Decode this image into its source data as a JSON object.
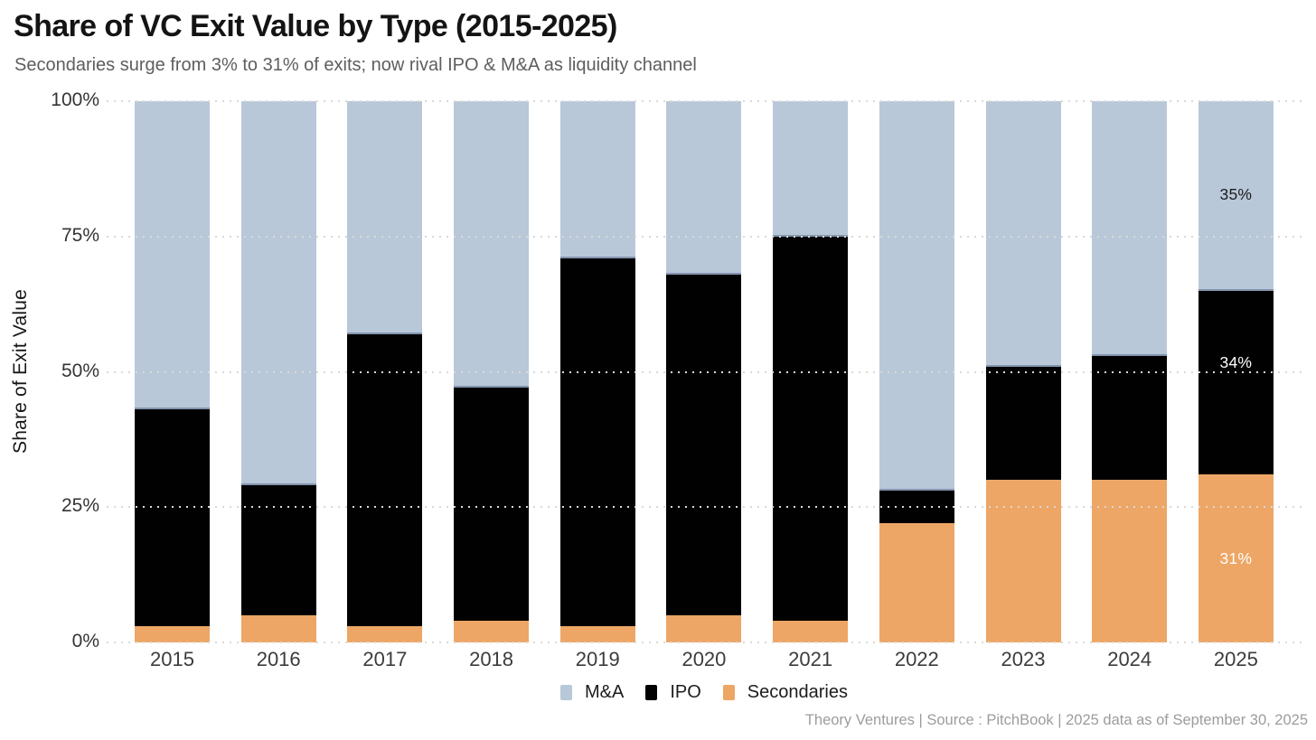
{
  "header": {
    "title": "Share of VC Exit Value by Type (2015-2025)",
    "subtitle": "Secondaries surge from 3% to 31% of exits; now rival IPO & M&A as liquidity channel"
  },
  "footer": {
    "credit": "Theory Ventures | Source : PitchBook | 2025 data as of September 30, 2025"
  },
  "colors": {
    "mna": "#b8c8d9",
    "ipo": "#010101",
    "secondaries": "#eda665",
    "gridline": "#d9d9d9",
    "background": "#ffffff"
  },
  "chart_data": {
    "type": "bar",
    "stacked": true,
    "title": "Share of VC Exit Value by Type (2015-2025)",
    "subtitle": "Secondaries surge from 3% to 31% of exits; now rival IPO & M&A as liquidity channel",
    "xlabel": "",
    "ylabel": "Share of Exit Value",
    "ylim": [
      0,
      100
    ],
    "yticks": [
      "0%",
      "25%",
      "50%",
      "75%",
      "100%"
    ],
    "grid": "horizontal-dotted",
    "legend_position": "bottom-center",
    "categories": [
      "2015",
      "2016",
      "2017",
      "2018",
      "2019",
      "2020",
      "2021",
      "2022",
      "2023",
      "2024",
      "2025"
    ],
    "series": [
      {
        "name": "M&A",
        "key": "mna",
        "color": "#b8c8d9",
        "label_color": "#1c1c1c",
        "values": [
          57,
          71,
          43,
          53,
          29,
          32,
          25,
          72,
          49,
          47,
          35
        ],
        "value_labels": [
          "",
          "",
          "",
          "",
          "",
          "",
          "",
          "",
          "",
          "",
          "35%"
        ]
      },
      {
        "name": "IPO",
        "key": "ipo",
        "color": "#010101",
        "label_color": "#ffffff",
        "values": [
          40,
          24,
          54,
          43,
          68,
          63,
          71,
          6,
          21,
          23,
          34
        ],
        "value_labels": [
          "",
          "",
          "",
          "",
          "",
          "",
          "",
          "",
          "",
          "",
          "34%"
        ]
      },
      {
        "name": "Secondaries",
        "key": "secondaries",
        "color": "#eda665",
        "label_color": "#ffffff",
        "values": [
          3,
          5,
          3,
          4,
          3,
          5,
          4,
          22,
          30,
          30,
          31
        ],
        "value_labels": [
          "",
          "",
          "",
          "",
          "",
          "",
          "",
          "",
          "",
          "",
          "31%"
        ]
      }
    ]
  }
}
